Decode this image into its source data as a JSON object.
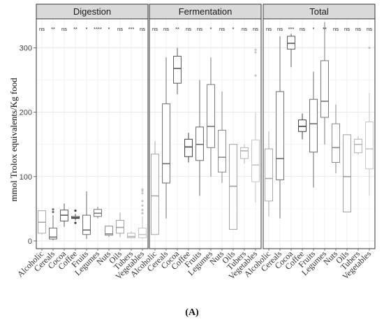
{
  "figure_caption": "(A)",
  "chart_data": {
    "type": "boxplot",
    "ylabel": "mmol Trolox equivalents/Kg food",
    "ylim": [
      -12,
      345
    ],
    "yticks": [
      0,
      100,
      200,
      300
    ],
    "grid": true,
    "legend": "none",
    "categories": [
      "Alcoholic",
      "Cereals",
      "Cocoa",
      "Coffee",
      "Fruits",
      "Legumes",
      "Nuts",
      "Oils",
      "Tubers",
      "Vegetables"
    ],
    "panels": [
      {
        "title": "Digestion",
        "significance": [
          "ns",
          "**",
          "ns",
          "**",
          "*",
          "****",
          "*",
          "ns",
          "***",
          "ns"
        ],
        "boxes": [
          {
            "category": "Alcoholic",
            "min": 10,
            "q1": 12,
            "median": 29,
            "q3": 47,
            "max": 47,
            "outliers": []
          },
          {
            "category": "Cereals",
            "min": 1,
            "q1": 3,
            "median": 6,
            "q3": 20,
            "max": 40,
            "outliers": [
              45,
              49
            ]
          },
          {
            "category": "Cocoa",
            "min": 22,
            "q1": 31,
            "median": 40,
            "q3": 48,
            "max": 58,
            "outliers": []
          },
          {
            "category": "Coffee",
            "min": 32,
            "q1": 35,
            "median": 36,
            "q3": 38,
            "max": 42,
            "outliers": [
              28,
              47
            ]
          },
          {
            "category": "Fruits",
            "min": 3,
            "q1": 10,
            "median": 17,
            "q3": 40,
            "max": 77,
            "outliers": []
          },
          {
            "category": "Legumes",
            "min": 35,
            "q1": 38,
            "median": 43,
            "q3": 49,
            "max": 53,
            "outliers": []
          },
          {
            "category": "Nuts",
            "min": 6,
            "q1": 9,
            "median": 11,
            "q3": 23,
            "max": 24,
            "outliers": []
          },
          {
            "category": "Oils",
            "min": 6,
            "q1": 12,
            "median": 21,
            "q3": 32,
            "max": 44,
            "outliers": []
          },
          {
            "category": "Tubers",
            "min": 4,
            "q1": 5,
            "median": 7,
            "q3": 12,
            "max": 15,
            "outliers": []
          },
          {
            "category": "Vegetables",
            "min": 3,
            "q1": 5,
            "median": 10,
            "q3": 20,
            "max": 38,
            "outliers": [
              43,
              48,
              55,
              62,
              74,
              78,
              80
            ]
          }
        ]
      },
      {
        "title": "Fermentation",
        "significance": [
          "ns",
          "ns",
          "**",
          "ns",
          "ns",
          "*",
          "ns",
          "*",
          "ns",
          "ns"
        ],
        "boxes": [
          {
            "category": "Alcoholic",
            "min": 10,
            "q1": 10,
            "median": 70,
            "q3": 135,
            "max": 155,
            "outliers": []
          },
          {
            "category": "Cereals",
            "min": 35,
            "q1": 90,
            "median": 120,
            "q3": 213,
            "max": 285,
            "outliers": []
          },
          {
            "category": "Cocoa",
            "min": 228,
            "q1": 245,
            "median": 268,
            "q3": 287,
            "max": 300,
            "outliers": []
          },
          {
            "category": "Coffee",
            "min": 122,
            "q1": 131,
            "median": 146,
            "q3": 158,
            "max": 168,
            "outliers": []
          },
          {
            "category": "Fruits",
            "min": 70,
            "q1": 125,
            "median": 150,
            "q3": 177,
            "max": 250,
            "outliers": []
          },
          {
            "category": "Legumes",
            "min": 100,
            "q1": 145,
            "median": 178,
            "q3": 243,
            "max": 285,
            "outliers": []
          },
          {
            "category": "Nuts",
            "min": 90,
            "q1": 107,
            "median": 130,
            "q3": 172,
            "max": 232,
            "outliers": []
          },
          {
            "category": "Oils",
            "min": 18,
            "q1": 18,
            "median": 85,
            "q3": 150,
            "max": 150,
            "outliers": []
          },
          {
            "category": "Tubers",
            "min": 120,
            "q1": 128,
            "median": 140,
            "q3": 145,
            "max": 150,
            "outliers": []
          },
          {
            "category": "Vegetables",
            "min": 60,
            "q1": 92,
            "median": 118,
            "q3": 157,
            "max": 200,
            "outliers": [
              257,
              293,
              297
            ]
          }
        ]
      },
      {
        "title": "Total",
        "significance": [
          "ns",
          "ns",
          "***",
          "ns",
          "*",
          "**",
          "ns",
          "ns",
          "ns",
          "ns"
        ],
        "boxes": [
          {
            "category": "Alcoholic",
            "min": 38,
            "q1": 62,
            "median": 97,
            "q3": 143,
            "max": 170,
            "outliers": []
          },
          {
            "category": "Cereals",
            "min": 35,
            "q1": 95,
            "median": 128,
            "q3": 232,
            "max": 318,
            "outliers": []
          },
          {
            "category": "Cocoa",
            "min": 270,
            "q1": 298,
            "median": 307,
            "q3": 318,
            "max": 322,
            "outliers": []
          },
          {
            "category": "Coffee",
            "min": 158,
            "q1": 170,
            "median": 178,
            "q3": 188,
            "max": 198,
            "outliers": []
          },
          {
            "category": "Fruits",
            "min": 83,
            "q1": 138,
            "median": 182,
            "q3": 220,
            "max": 263,
            "outliers": []
          },
          {
            "category": "Legumes",
            "min": 150,
            "q1": 192,
            "median": 217,
            "q3": 280,
            "max": 340,
            "outliers": []
          },
          {
            "category": "Nuts",
            "min": 105,
            "q1": 122,
            "median": 145,
            "q3": 182,
            "max": 212,
            "outliers": []
          },
          {
            "category": "Oils",
            "min": 45,
            "q1": 45,
            "median": 100,
            "q3": 165,
            "max": 165,
            "outliers": []
          },
          {
            "category": "Tubers",
            "min": 134,
            "q1": 137,
            "median": 150,
            "q3": 158,
            "max": 163,
            "outliers": []
          },
          {
            "category": "Vegetables",
            "min": 70,
            "q1": 112,
            "median": 143,
            "q3": 185,
            "max": 230,
            "outliers": [
              300
            ]
          }
        ]
      }
    ]
  }
}
